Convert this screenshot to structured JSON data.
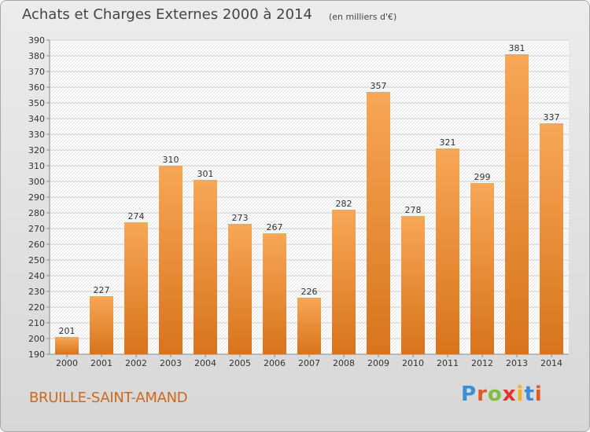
{
  "header": {
    "title": "Achats et Charges Externes 2000 à 2014",
    "subtitle": "(en milliers d'€)"
  },
  "footer": {
    "commune": "BRUILLE-SAINT-AMAND",
    "logo": "Proxiti"
  },
  "colors": {
    "bar_top": "#f7a756",
    "bar_bottom": "#d8741c",
    "commune_text": "#cc6a1e",
    "logo_letters": [
      "#3b8fd6",
      "#e05a2a",
      "#7fbf3f",
      "#e8302f",
      "#f2b01e",
      "#3b8fd6",
      "#e05a2a"
    ]
  },
  "chart_data": {
    "type": "bar",
    "title": "Achats et Charges Externes 2000 à 2014",
    "subtitle": "(en milliers d'€)",
    "categories": [
      "2000",
      "2001",
      "2002",
      "2003",
      "2004",
      "2005",
      "2006",
      "2007",
      "2008",
      "2009",
      "2010",
      "2011",
      "2012",
      "2013",
      "2014"
    ],
    "values": [
      201,
      227,
      274,
      310,
      301,
      273,
      267,
      226,
      282,
      357,
      278,
      321,
      299,
      381,
      337
    ],
    "ylim": [
      190,
      390
    ],
    "yticks": [
      190,
      200,
      210,
      220,
      230,
      240,
      250,
      260,
      270,
      280,
      290,
      300,
      310,
      320,
      330,
      340,
      350,
      360,
      370,
      380,
      390
    ],
    "grid": true,
    "data_labels": true
  }
}
